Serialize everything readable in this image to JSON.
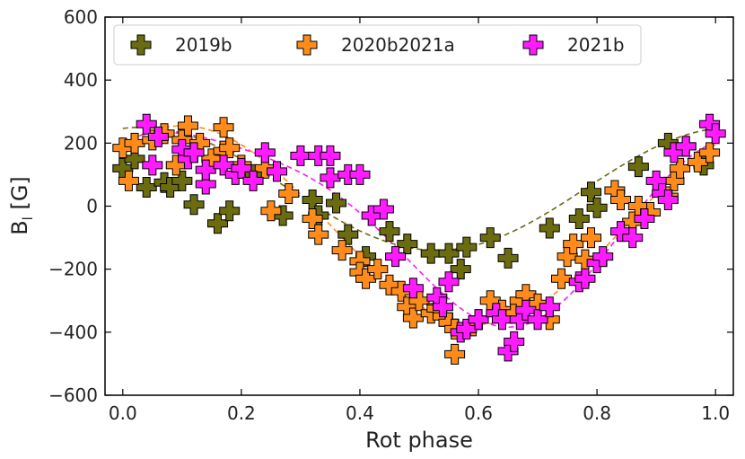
{
  "chart_data": {
    "type": "scatter",
    "xlabel": "Rot phase",
    "ylabel": "B",
    "ylabel_sub": "l",
    "ylabel_unit": " [G]",
    "xlim": [
      -0.03,
      1.03
    ],
    "ylim": [
      -600,
      600
    ],
    "xticks": [
      0.0,
      0.2,
      0.4,
      0.6,
      0.8,
      1.0
    ],
    "xtick_labels": [
      "0.0",
      "0.2",
      "0.4",
      "0.6",
      "0.8",
      "1.0"
    ],
    "yticks": [
      -600,
      -400,
      -200,
      0,
      200,
      400,
      600
    ],
    "ytick_labels": [
      "−600",
      "−400",
      "−200",
      "0",
      "200",
      "400",
      "600"
    ],
    "legend_position": "top",
    "series": [
      {
        "name": "2019b",
        "color": "#6b6b10",
        "points": [
          [
            0.0,
            120
          ],
          [
            0.02,
            150
          ],
          [
            0.04,
            60
          ],
          [
            0.07,
            75
          ],
          [
            0.08,
            60
          ],
          [
            0.1,
            80
          ],
          [
            0.12,
            5
          ],
          [
            0.16,
            -55
          ],
          [
            0.18,
            -15
          ],
          [
            0.22,
            100
          ],
          [
            0.27,
            -30
          ],
          [
            0.32,
            20
          ],
          [
            0.33,
            -30
          ],
          [
            0.36,
            10
          ],
          [
            0.38,
            -90
          ],
          [
            0.41,
            -160
          ],
          [
            0.45,
            -80
          ],
          [
            0.48,
            -120
          ],
          [
            0.52,
            -150
          ],
          [
            0.55,
            -150
          ],
          [
            0.57,
            -200
          ],
          [
            0.58,
            -130
          ],
          [
            0.62,
            -100
          ],
          [
            0.65,
            -165
          ],
          [
            0.72,
            -70
          ],
          [
            0.77,
            -40
          ],
          [
            0.79,
            45
          ],
          [
            0.8,
            -5
          ],
          [
            0.87,
            125
          ],
          [
            0.92,
            200
          ],
          [
            0.95,
            190
          ],
          [
            0.98,
            130
          ]
        ]
      },
      {
        "name": "2020b2021a",
        "color": "#ff8c1a",
        "points": [
          [
            0.0,
            185
          ],
          [
            0.01,
            80
          ],
          [
            0.02,
            200
          ],
          [
            0.05,
            210
          ],
          [
            0.07,
            230
          ],
          [
            0.09,
            130
          ],
          [
            0.1,
            210
          ],
          [
            0.11,
            255
          ],
          [
            0.13,
            200
          ],
          [
            0.15,
            150
          ],
          [
            0.17,
            175
          ],
          [
            0.17,
            250
          ],
          [
            0.18,
            185
          ],
          [
            0.2,
            130
          ],
          [
            0.24,
            120
          ],
          [
            0.25,
            -15
          ],
          [
            0.28,
            40
          ],
          [
            0.32,
            -40
          ],
          [
            0.33,
            -90
          ],
          [
            0.37,
            -140
          ],
          [
            0.4,
            -175
          ],
          [
            0.4,
            -210
          ],
          [
            0.41,
            -230
          ],
          [
            0.43,
            -200
          ],
          [
            0.45,
            -250
          ],
          [
            0.47,
            -270
          ],
          [
            0.48,
            -320
          ],
          [
            0.49,
            -355
          ],
          [
            0.5,
            -300
          ],
          [
            0.52,
            -340
          ],
          [
            0.53,
            -325
          ],
          [
            0.54,
            -350
          ],
          [
            0.55,
            -370
          ],
          [
            0.56,
            -390
          ],
          [
            0.56,
            -470
          ],
          [
            0.59,
            -380
          ],
          [
            0.6,
            -360
          ],
          [
            0.62,
            -300
          ],
          [
            0.64,
            -330
          ],
          [
            0.66,
            -340
          ],
          [
            0.67,
            -300
          ],
          [
            0.68,
            -280
          ],
          [
            0.7,
            -310
          ],
          [
            0.72,
            -360
          ],
          [
            0.74,
            -230
          ],
          [
            0.75,
            -160
          ],
          [
            0.76,
            -120
          ],
          [
            0.78,
            -170
          ],
          [
            0.79,
            -100
          ],
          [
            0.83,
            50
          ],
          [
            0.84,
            20
          ],
          [
            0.86,
            -50
          ],
          [
            0.87,
            0
          ],
          [
            0.89,
            -20
          ],
          [
            0.92,
            30
          ],
          [
            0.93,
            80
          ],
          [
            0.94,
            120
          ],
          [
            0.97,
            140
          ],
          [
            0.99,
            170
          ]
        ]
      },
      {
        "name": "2021b",
        "color": "#ff1aff",
        "points": [
          [
            0.04,
            260
          ],
          [
            0.05,
            130
          ],
          [
            0.06,
            220
          ],
          [
            0.1,
            180
          ],
          [
            0.11,
            150
          ],
          [
            0.12,
            170
          ],
          [
            0.14,
            70
          ],
          [
            0.14,
            115
          ],
          [
            0.17,
            130
          ],
          [
            0.19,
            100
          ],
          [
            0.2,
            120
          ],
          [
            0.22,
            80
          ],
          [
            0.24,
            170
          ],
          [
            0.26,
            110
          ],
          [
            0.3,
            160
          ],
          [
            0.33,
            160
          ],
          [
            0.35,
            90
          ],
          [
            0.35,
            160
          ],
          [
            0.38,
            100
          ],
          [
            0.4,
            100
          ],
          [
            0.42,
            -30
          ],
          [
            0.44,
            -10
          ],
          [
            0.46,
            -160
          ],
          [
            0.49,
            -260
          ],
          [
            0.53,
            -290
          ],
          [
            0.54,
            -320
          ],
          [
            0.55,
            -240
          ],
          [
            0.57,
            -400
          ],
          [
            0.58,
            -390
          ],
          [
            0.6,
            -360
          ],
          [
            0.63,
            -340
          ],
          [
            0.64,
            -360
          ],
          [
            0.65,
            -460
          ],
          [
            0.66,
            -430
          ],
          [
            0.67,
            -360
          ],
          [
            0.68,
            -330
          ],
          [
            0.7,
            -360
          ],
          [
            0.72,
            -320
          ],
          [
            0.77,
            -240
          ],
          [
            0.78,
            -230
          ],
          [
            0.8,
            -180
          ],
          [
            0.81,
            -160
          ],
          [
            0.84,
            -80
          ],
          [
            0.86,
            -100
          ],
          [
            0.88,
            -40
          ],
          [
            0.9,
            80
          ],
          [
            0.91,
            40
          ],
          [
            0.92,
            20
          ],
          [
            0.93,
            170
          ],
          [
            0.95,
            190
          ],
          [
            0.99,
            260
          ],
          [
            1.0,
            230
          ]
        ]
      }
    ],
    "fits": [
      {
        "series": "2019b",
        "color": "#6b6b10",
        "offset": 55,
        "amplitude": 195,
        "phase_of_min": 0.53,
        "harmonic2_amp": 0,
        "harmonic2_phase": 0
      },
      {
        "series": "2020b2021a",
        "color": "#ff8c1a",
        "offset": -60,
        "amplitude": 315,
        "phase_of_min": 0.6,
        "harmonic2_amp": 0,
        "harmonic2_phase": 0
      },
      {
        "series": "2021b",
        "color": "#ff1aff",
        "offset": -35,
        "amplitude": 300,
        "phase_of_min": 0.63,
        "harmonic2_amp": 55,
        "harmonic2_phase": 0.18
      }
    ]
  }
}
